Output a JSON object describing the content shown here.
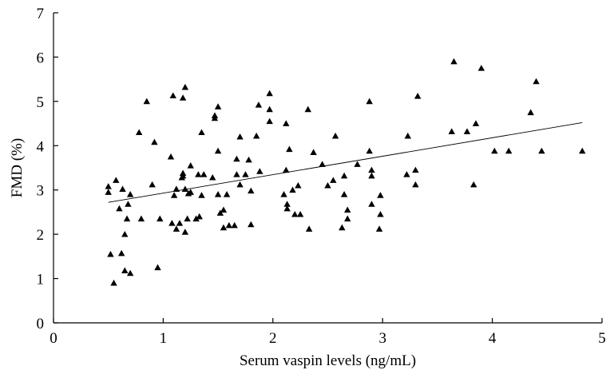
{
  "chart_data": {
    "type": "scatter",
    "title": "",
    "xlabel": "Serum vaspin levels (ng/mL)",
    "ylabel": "FMD (%)",
    "xlim": [
      0,
      5
    ],
    "ylim": [
      0,
      7
    ],
    "xticks": [
      "0",
      "1",
      "2",
      "3",
      "4",
      "5"
    ],
    "yticks": [
      "0",
      "1",
      "2",
      "3",
      "4",
      "5",
      "6",
      "7"
    ],
    "grid": false,
    "marker": "triangle",
    "marker_color": "#000000",
    "series": [
      {
        "points": [
          [
            0.5,
            3.08
          ],
          [
            0.5,
            2.95
          ],
          [
            0.52,
            1.55
          ],
          [
            0.55,
            0.9
          ],
          [
            0.57,
            3.22
          ],
          [
            0.6,
            2.58
          ],
          [
            0.62,
            1.57
          ],
          [
            0.63,
            3.02
          ],
          [
            0.65,
            1.18
          ],
          [
            0.65,
            2.0
          ],
          [
            0.67,
            2.35
          ],
          [
            0.68,
            2.68
          ],
          [
            0.7,
            1.12
          ],
          [
            0.7,
            2.9
          ],
          [
            0.78,
            4.3
          ],
          [
            0.8,
            2.35
          ],
          [
            0.85,
            5.0
          ],
          [
            0.9,
            3.12
          ],
          [
            0.92,
            4.08
          ],
          [
            0.95,
            1.25
          ],
          [
            0.97,
            2.35
          ],
          [
            1.07,
            3.75
          ],
          [
            1.08,
            2.25
          ],
          [
            1.09,
            5.13
          ],
          [
            1.1,
            2.88
          ],
          [
            1.12,
            2.12
          ],
          [
            1.12,
            3.02
          ],
          [
            1.15,
            2.25
          ],
          [
            1.17,
            3.28
          ],
          [
            1.18,
            3.32
          ],
          [
            1.18,
            3.38
          ],
          [
            1.18,
            5.08
          ],
          [
            1.2,
            2.05
          ],
          [
            1.2,
            3.02
          ],
          [
            1.2,
            5.32
          ],
          [
            1.22,
            2.35
          ],
          [
            1.23,
            2.92
          ],
          [
            1.25,
            3.55
          ],
          [
            1.25,
            2.95
          ],
          [
            1.3,
            2.35
          ],
          [
            1.32,
            3.35
          ],
          [
            1.33,
            2.4
          ],
          [
            1.35,
            4.3
          ],
          [
            1.37,
            3.35
          ],
          [
            1.35,
            2.88
          ],
          [
            1.45,
            3.28
          ],
          [
            1.47,
            4.68
          ],
          [
            1.47,
            4.62
          ],
          [
            1.5,
            4.88
          ],
          [
            1.5,
            3.88
          ],
          [
            1.5,
            2.9
          ],
          [
            1.52,
            2.48
          ],
          [
            1.55,
            2.55
          ],
          [
            1.55,
            2.15
          ],
          [
            1.58,
            2.9
          ],
          [
            1.6,
            2.2
          ],
          [
            1.65,
            2.2
          ],
          [
            1.67,
            3.7
          ],
          [
            1.67,
            3.35
          ],
          [
            1.7,
            4.2
          ],
          [
            1.7,
            3.12
          ],
          [
            1.75,
            3.35
          ],
          [
            1.78,
            3.68
          ],
          [
            1.8,
            2.98
          ],
          [
            1.8,
            2.22
          ],
          [
            1.85,
            4.22
          ],
          [
            1.87,
            4.92
          ],
          [
            1.88,
            3.42
          ],
          [
            1.97,
            4.82
          ],
          [
            1.97,
            5.18
          ],
          [
            1.97,
            4.55
          ],
          [
            2.1,
            2.9
          ],
          [
            2.12,
            3.45
          ],
          [
            2.12,
            4.5
          ],
          [
            2.13,
            2.68
          ],
          [
            2.13,
            2.58
          ],
          [
            2.15,
            3.92
          ],
          [
            2.18,
            3.0
          ],
          [
            2.2,
            2.45
          ],
          [
            2.23,
            3.1
          ],
          [
            2.25,
            2.45
          ],
          [
            2.32,
            4.82
          ],
          [
            2.33,
            2.12
          ],
          [
            2.37,
            3.85
          ],
          [
            2.45,
            3.58
          ],
          [
            2.5,
            3.1
          ],
          [
            2.55,
            3.22
          ],
          [
            2.57,
            4.22
          ],
          [
            2.63,
            2.15
          ],
          [
            2.65,
            3.32
          ],
          [
            2.65,
            2.9
          ],
          [
            2.68,
            2.35
          ],
          [
            2.68,
            2.55
          ],
          [
            2.77,
            3.58
          ],
          [
            2.88,
            3.88
          ],
          [
            2.88,
            5.0
          ],
          [
            2.9,
            3.32
          ],
          [
            2.9,
            3.45
          ],
          [
            2.9,
            2.68
          ],
          [
            2.97,
            2.12
          ],
          [
            2.98,
            2.88
          ],
          [
            2.98,
            2.45
          ],
          [
            3.22,
            3.35
          ],
          [
            3.23,
            4.22
          ],
          [
            3.3,
            3.45
          ],
          [
            3.3,
            3.12
          ],
          [
            3.32,
            5.12
          ],
          [
            3.63,
            4.32
          ],
          [
            3.65,
            5.9
          ],
          [
            3.77,
            4.32
          ],
          [
            3.83,
            3.12
          ],
          [
            3.85,
            4.5
          ],
          [
            3.9,
            5.75
          ],
          [
            4.02,
            3.88
          ],
          [
            4.15,
            3.88
          ],
          [
            4.35,
            4.75
          ],
          [
            4.4,
            5.45
          ],
          [
            4.45,
            3.88
          ],
          [
            4.82,
            3.88
          ]
        ]
      }
    ],
    "trendline": {
      "x": [
        0.5,
        4.82
      ],
      "y": [
        2.72,
        4.52
      ]
    }
  }
}
